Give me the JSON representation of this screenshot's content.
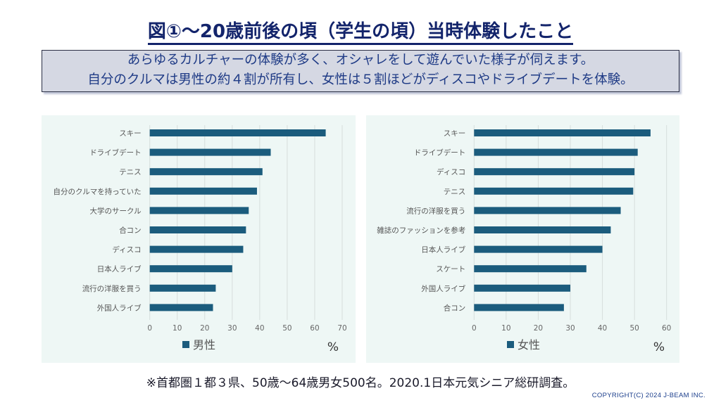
{
  "page": {
    "title": "図①～20歳前後の頃（学生の頃）当時体験したこと",
    "summary_line1": "あらゆるカルチャーの体験が多く、オシャレをして遊んでいた様子が伺えます。",
    "summary_line2": "自分のクルマは男性の約４割が所有し、女性は５割ほどがディスコやドライブデートを体験。",
    "footnote": "※首都圏１都３県、50歳～64歳男女500名。2020.1日本元気シニア総研調査。",
    "copyright": "COPYRIGHT(C) 2024  J-BEAM  INC."
  },
  "colors": {
    "bar": "#1b5c7d",
    "panel_bg": "#eef7f5",
    "title": "#13246b",
    "summary_text": "#1f3b86"
  },
  "chart_data": [
    {
      "type": "bar",
      "orientation": "horizontal",
      "title": "",
      "legend": "男性",
      "legend_position": "bottom",
      "unit": "%",
      "categories": [
        "スキー",
        "ドライブデート",
        "テニス",
        "自分のクルマを持っていた",
        "大学のサークル",
        "合コン",
        "ディスコ",
        "日本人ライブ",
        "流行の洋服を買う",
        "外国人ライブ"
      ],
      "values": [
        64,
        44,
        41,
        39,
        36,
        35,
        34,
        30,
        24,
        23
      ],
      "xlim": [
        0,
        70
      ],
      "xticks": [
        "0",
        "10",
        "20",
        "30",
        "40",
        "50",
        "60",
        "70"
      ],
      "grid": true
    },
    {
      "type": "bar",
      "orientation": "horizontal",
      "title": "",
      "legend": "女性",
      "legend_position": "bottom",
      "unit": "%",
      "categories": [
        "スキー",
        "ドライブデート",
        "ディスコ",
        "テニス",
        "流行の洋服を買う",
        "雑誌のファッションを参考",
        "日本人ライブ",
        "スケート",
        "外国人ライブ",
        "合コン"
      ],
      "values": [
        55,
        51,
        50,
        49.6,
        45.7,
        42.6,
        40,
        35,
        30,
        28
      ],
      "xlim": [
        0,
        60
      ],
      "xticks": [
        "0",
        "10",
        "20",
        "30",
        "40",
        "50",
        "60"
      ],
      "grid": true
    }
  ]
}
